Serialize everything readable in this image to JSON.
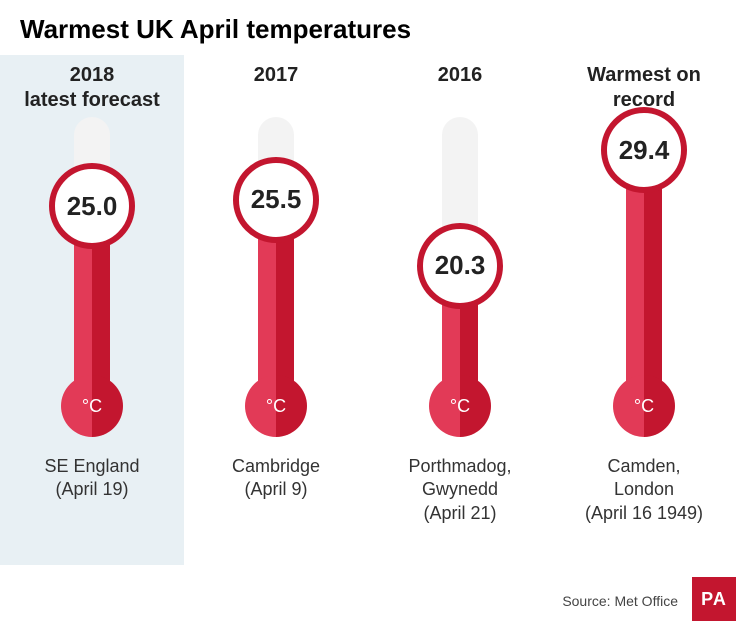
{
  "title": "Warmest UK April temperatures",
  "colors": {
    "red_light": "#e23a57",
    "red_dark": "#c3162f",
    "tube_bg": "#f3f3f3",
    "highlight_bg": "#e8f0f4",
    "pa_bg": "#c3162f"
  },
  "scale": {
    "min": 10,
    "max": 32
  },
  "thermometers": [
    {
      "header": "2018\nlatest forecast",
      "value": 25.0,
      "value_display": "25.0",
      "location": "SE England\n(April 19)",
      "highlighted": true
    },
    {
      "header": "2017",
      "value": 25.5,
      "value_display": "25.5",
      "location": "Cambridge\n(April 9)",
      "highlighted": false
    },
    {
      "header": "2016",
      "value": 20.3,
      "value_display": "20.3",
      "location": "Porthmadog,\nGwynedd\n(April 21)",
      "highlighted": false
    },
    {
      "header": "Warmest on\nrecord",
      "value": 29.4,
      "value_display": "29.4",
      "location": "Camden,\nLondon\n(April 16 1949)",
      "highlighted": false
    }
  ],
  "unit": "°C",
  "source": "Source: Met Office",
  "badge": "PA"
}
